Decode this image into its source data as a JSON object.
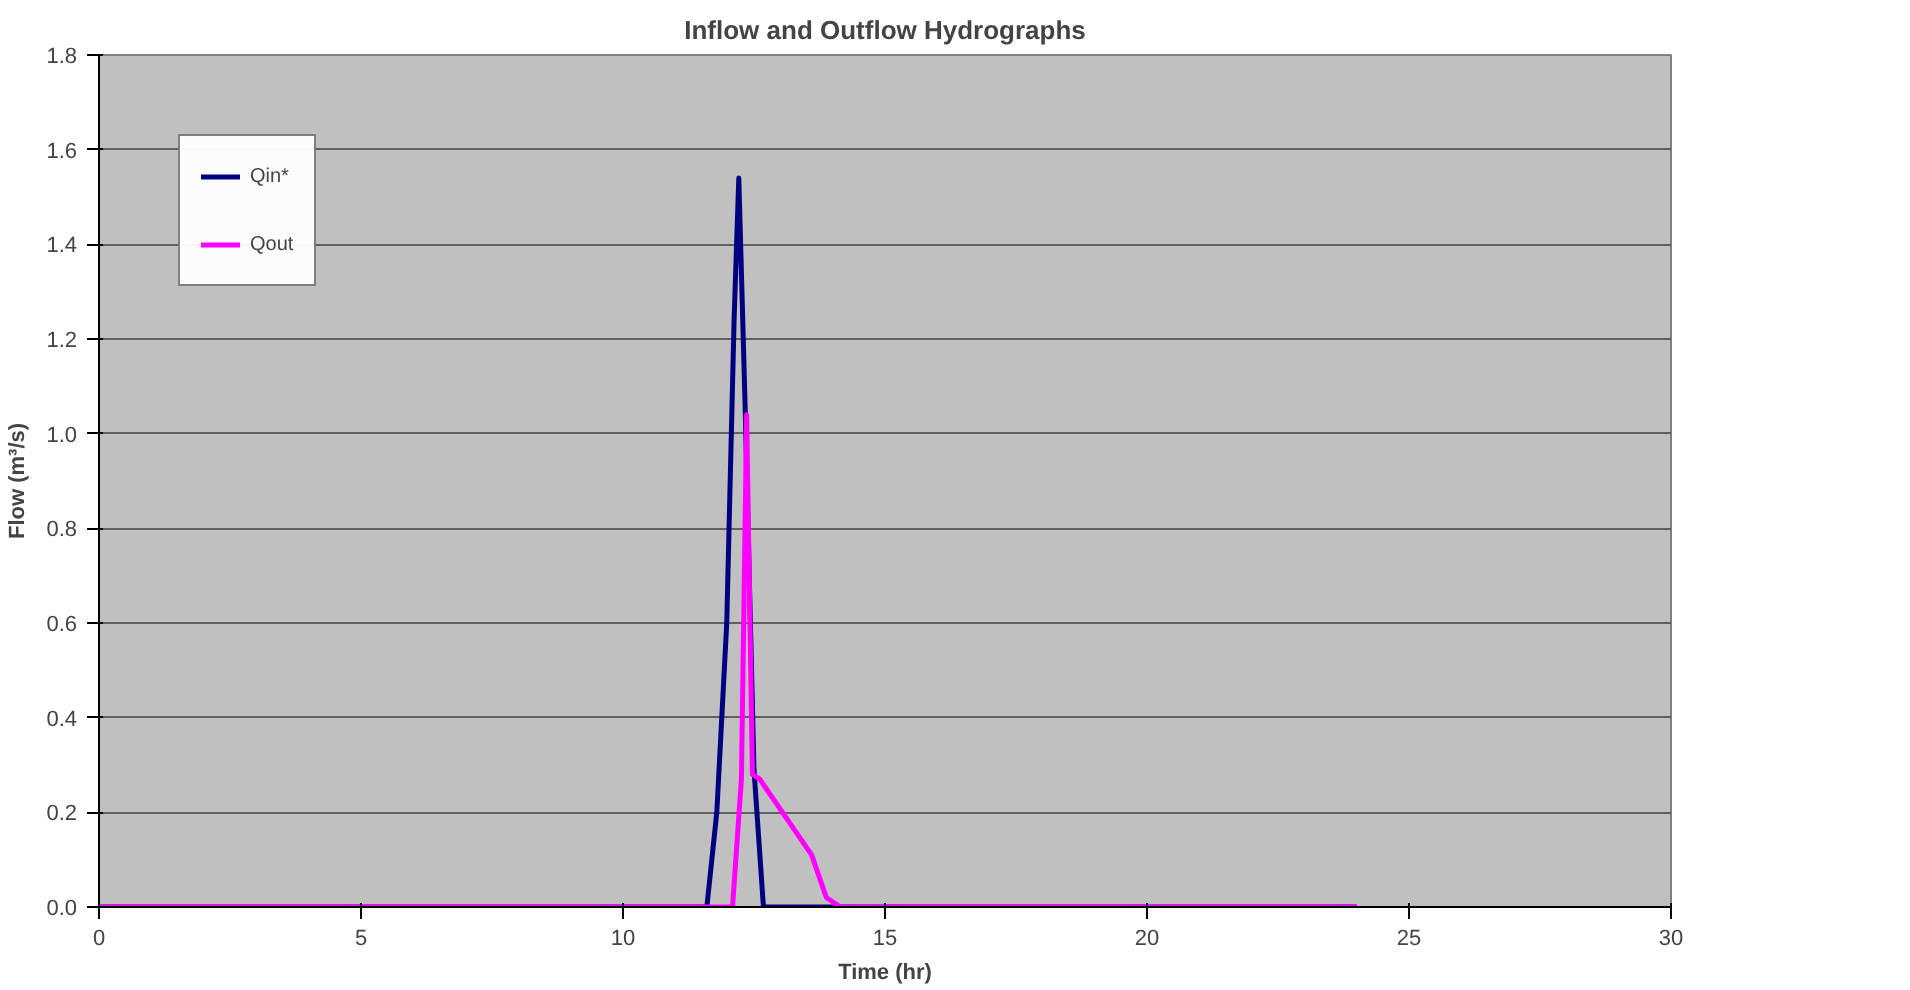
{
  "chart_data": {
    "type": "line",
    "title": "Inflow and Outflow Hydrographs",
    "xlabel": "Time (hr)",
    "ylabel": "Flow (m³/s)",
    "xlim": [
      0,
      30
    ],
    "xticks": [
      0,
      5,
      10,
      15,
      20,
      25,
      30
    ],
    "ylim": [
      0,
      1.8
    ],
    "yticks": [
      {
        "value": 0,
        "label": "0.0"
      },
      {
        "value": 0.2,
        "label": "0.2"
      },
      {
        "value": 0.4,
        "label": "0.4"
      },
      {
        "value": 0.6,
        "label": "0.6"
      },
      {
        "value": 0.8,
        "label": "0.8"
      },
      {
        "value": 1.0,
        "label": "1.0"
      },
      {
        "value": 1.2,
        "label": "1.2"
      },
      {
        "value": 1.4,
        "label": "1.4"
      },
      {
        "value": 1.6,
        "label": "1.6"
      },
      {
        "value": 1.8,
        "label": "1.8"
      }
    ],
    "grid": "y",
    "legend": "top left",
    "series": [
      {
        "name": "Qin*",
        "color": "#000080",
        "x": [
          0,
          11.6,
          11.79,
          11.98,
          12.12,
          12.21,
          12.33,
          12.5,
          12.68,
          24
        ],
        "values": [
          0,
          0,
          0.2,
          0.6,
          1.24,
          1.54,
          1.06,
          0.29,
          0,
          0
        ]
      },
      {
        "name": "Qout",
        "color": "#ff00ff",
        "x": [
          0,
          12.09,
          12.26,
          12.36,
          12.47,
          12.61,
          13.6,
          13.88,
          14.15,
          24
        ],
        "values": [
          0,
          0,
          0.27,
          1.04,
          0.28,
          0.27,
          0.11,
          0.02,
          0,
          0
        ]
      }
    ]
  }
}
